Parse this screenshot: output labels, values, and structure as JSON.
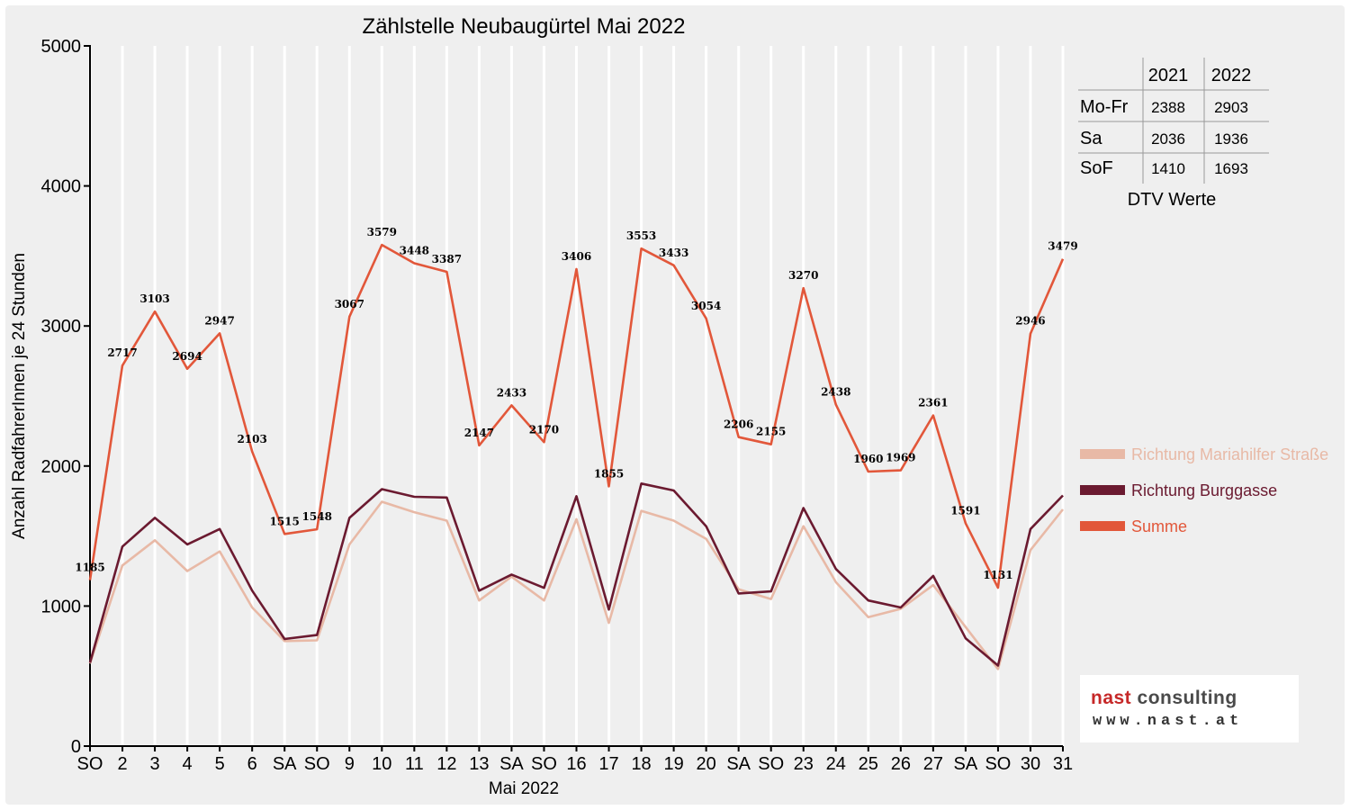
{
  "chart_data": {
    "type": "line",
    "title": "Zählstelle Neubaugürtel Mai 2022",
    "xlabel": "Mai 2022",
    "ylabel": "Anzahl RadfahrerInnen je 24 Stunden",
    "ylim": [
      0,
      5000
    ],
    "yticks": [
      "0",
      "1000",
      "2000",
      "3000",
      "4000",
      "5000"
    ],
    "grid": "vertical",
    "legend_position": "right",
    "categories": [
      "SO",
      "2",
      "3",
      "4",
      "5",
      "6",
      "SA",
      "SO",
      "9",
      "10",
      "11",
      "12",
      "13",
      "SA",
      "SO",
      "16",
      "17",
      "18",
      "19",
      "20",
      "SA",
      "SO",
      "23",
      "24",
      "25",
      "26",
      "27",
      "SA",
      "SO",
      "30",
      "31"
    ],
    "holiday_indices": [
      0,
      7,
      14,
      21,
      25,
      28
    ],
    "series": [
      {
        "name": "Richtung Mariahilfer Straße",
        "color": "#e8b9a6",
        "values": [
          590,
          1290,
          1470,
          1250,
          1390,
          990,
          750,
          755,
          1440,
          1745,
          1670,
          1610,
          1040,
          1210,
          1040,
          1620,
          880,
          1680,
          1610,
          1480,
          1120,
          1050,
          1570,
          1170,
          920,
          980,
          1150,
          850,
          550,
          1400,
          1690
        ]
      },
      {
        "name": "Richtung Burggasse",
        "color": "#6b1a30",
        "values": [
          595,
          1425,
          1630,
          1440,
          1550,
          1110,
          765,
          793,
          1630,
          1835,
          1780,
          1775,
          1110,
          1225,
          1130,
          1785,
          975,
          1875,
          1825,
          1570,
          1090,
          1105,
          1700,
          1265,
          1040,
          990,
          1215,
          770,
          575,
          1550,
          1790
        ]
      },
      {
        "name": "Summe",
        "color": "#e2573a",
        "values": [
          1185,
          2717,
          3103,
          2694,
          2947,
          2103,
          1515,
          1548,
          3067,
          3579,
          3448,
          3387,
          2147,
          2433,
          2170,
          3406,
          1855,
          3553,
          3433,
          3054,
          2206,
          2155,
          3270,
          2438,
          1960,
          1969,
          2361,
          1591,
          1131,
          2946,
          3479
        ]
      }
    ],
    "data_labels": [
      "1185",
      "2717",
      "3103",
      "2694",
      "2947",
      "2103",
      "1515",
      "1548",
      "3067",
      "3579",
      "3448",
      "3387",
      "2147",
      "2433",
      "2170",
      "3406",
      "1855",
      "3553",
      "3433",
      "3054",
      "2206",
      "2155",
      "3270",
      "2438",
      "1960",
      "1969",
      "2361",
      "1591",
      "1131",
      "2946",
      "3479"
    ]
  },
  "dtv_table": {
    "caption": "DTV Werte",
    "headers": [
      "2021",
      "2022"
    ],
    "rows": [
      {
        "label": "Mo-Fr",
        "values": [
          "2388",
          "2903"
        ]
      },
      {
        "label": "Sa",
        "values": [
          "2036",
          "1936"
        ]
      },
      {
        "label": "SoF",
        "values": [
          "1410",
          "1693"
        ]
      }
    ]
  },
  "logo": {
    "name_part1": "nast",
    "name_part2": "consulting",
    "url": "www.nast.at"
  },
  "colors": {
    "holiday_red": "#e00000",
    "axis": "#000000",
    "grid": "#ffffff",
    "background": "#efefef"
  }
}
